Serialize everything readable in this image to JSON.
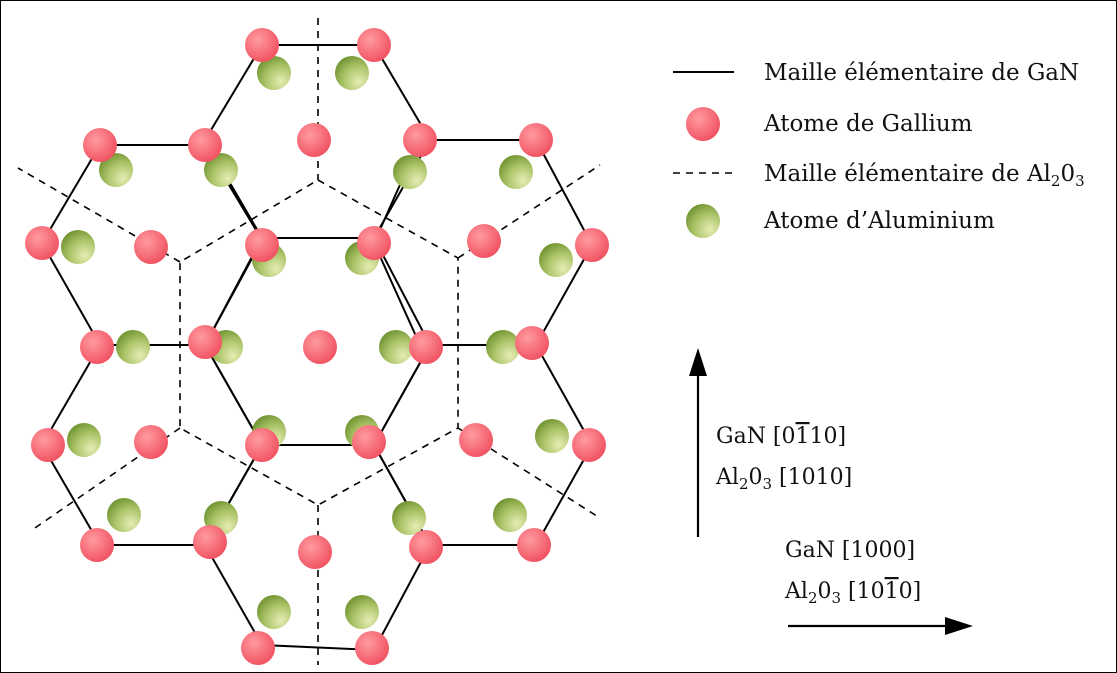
{
  "legend": {
    "gan_cell": "Maille élémentaire de GaN",
    "gallium_atom": "Atome de Gallium",
    "al2o3_cell": {
      "pre": "Maille élémentaire de Al",
      "sub1": "2",
      "mid": "0",
      "sub2": "3"
    },
    "aluminium_atom": "Atome d’Aluminium"
  },
  "directions": {
    "vertical": {
      "gan": {
        "pre": "GaN [0",
        "bar": "1",
        "post": "10]"
      },
      "al2o3": {
        "pre": "Al",
        "sub1": "2",
        "mid": "0",
        "sub2": "3",
        "post": " [1010]"
      }
    },
    "horizontal": {
      "gan": {
        "text": "GaN [1000]"
      },
      "al2o3": {
        "pre": "Al",
        "sub1": "2",
        "mid": "0",
        "sub2": "3",
        "post": " [10",
        "bar": "1",
        "post2": "0]"
      }
    }
  },
  "colors": {
    "gallium_fill": "#f0505f",
    "gallium_highlight": "#ff9aa0",
    "aluminium_fill": "#6a8f2c",
    "aluminium_highlight": "#e6edb3",
    "line": "#000000"
  }
}
